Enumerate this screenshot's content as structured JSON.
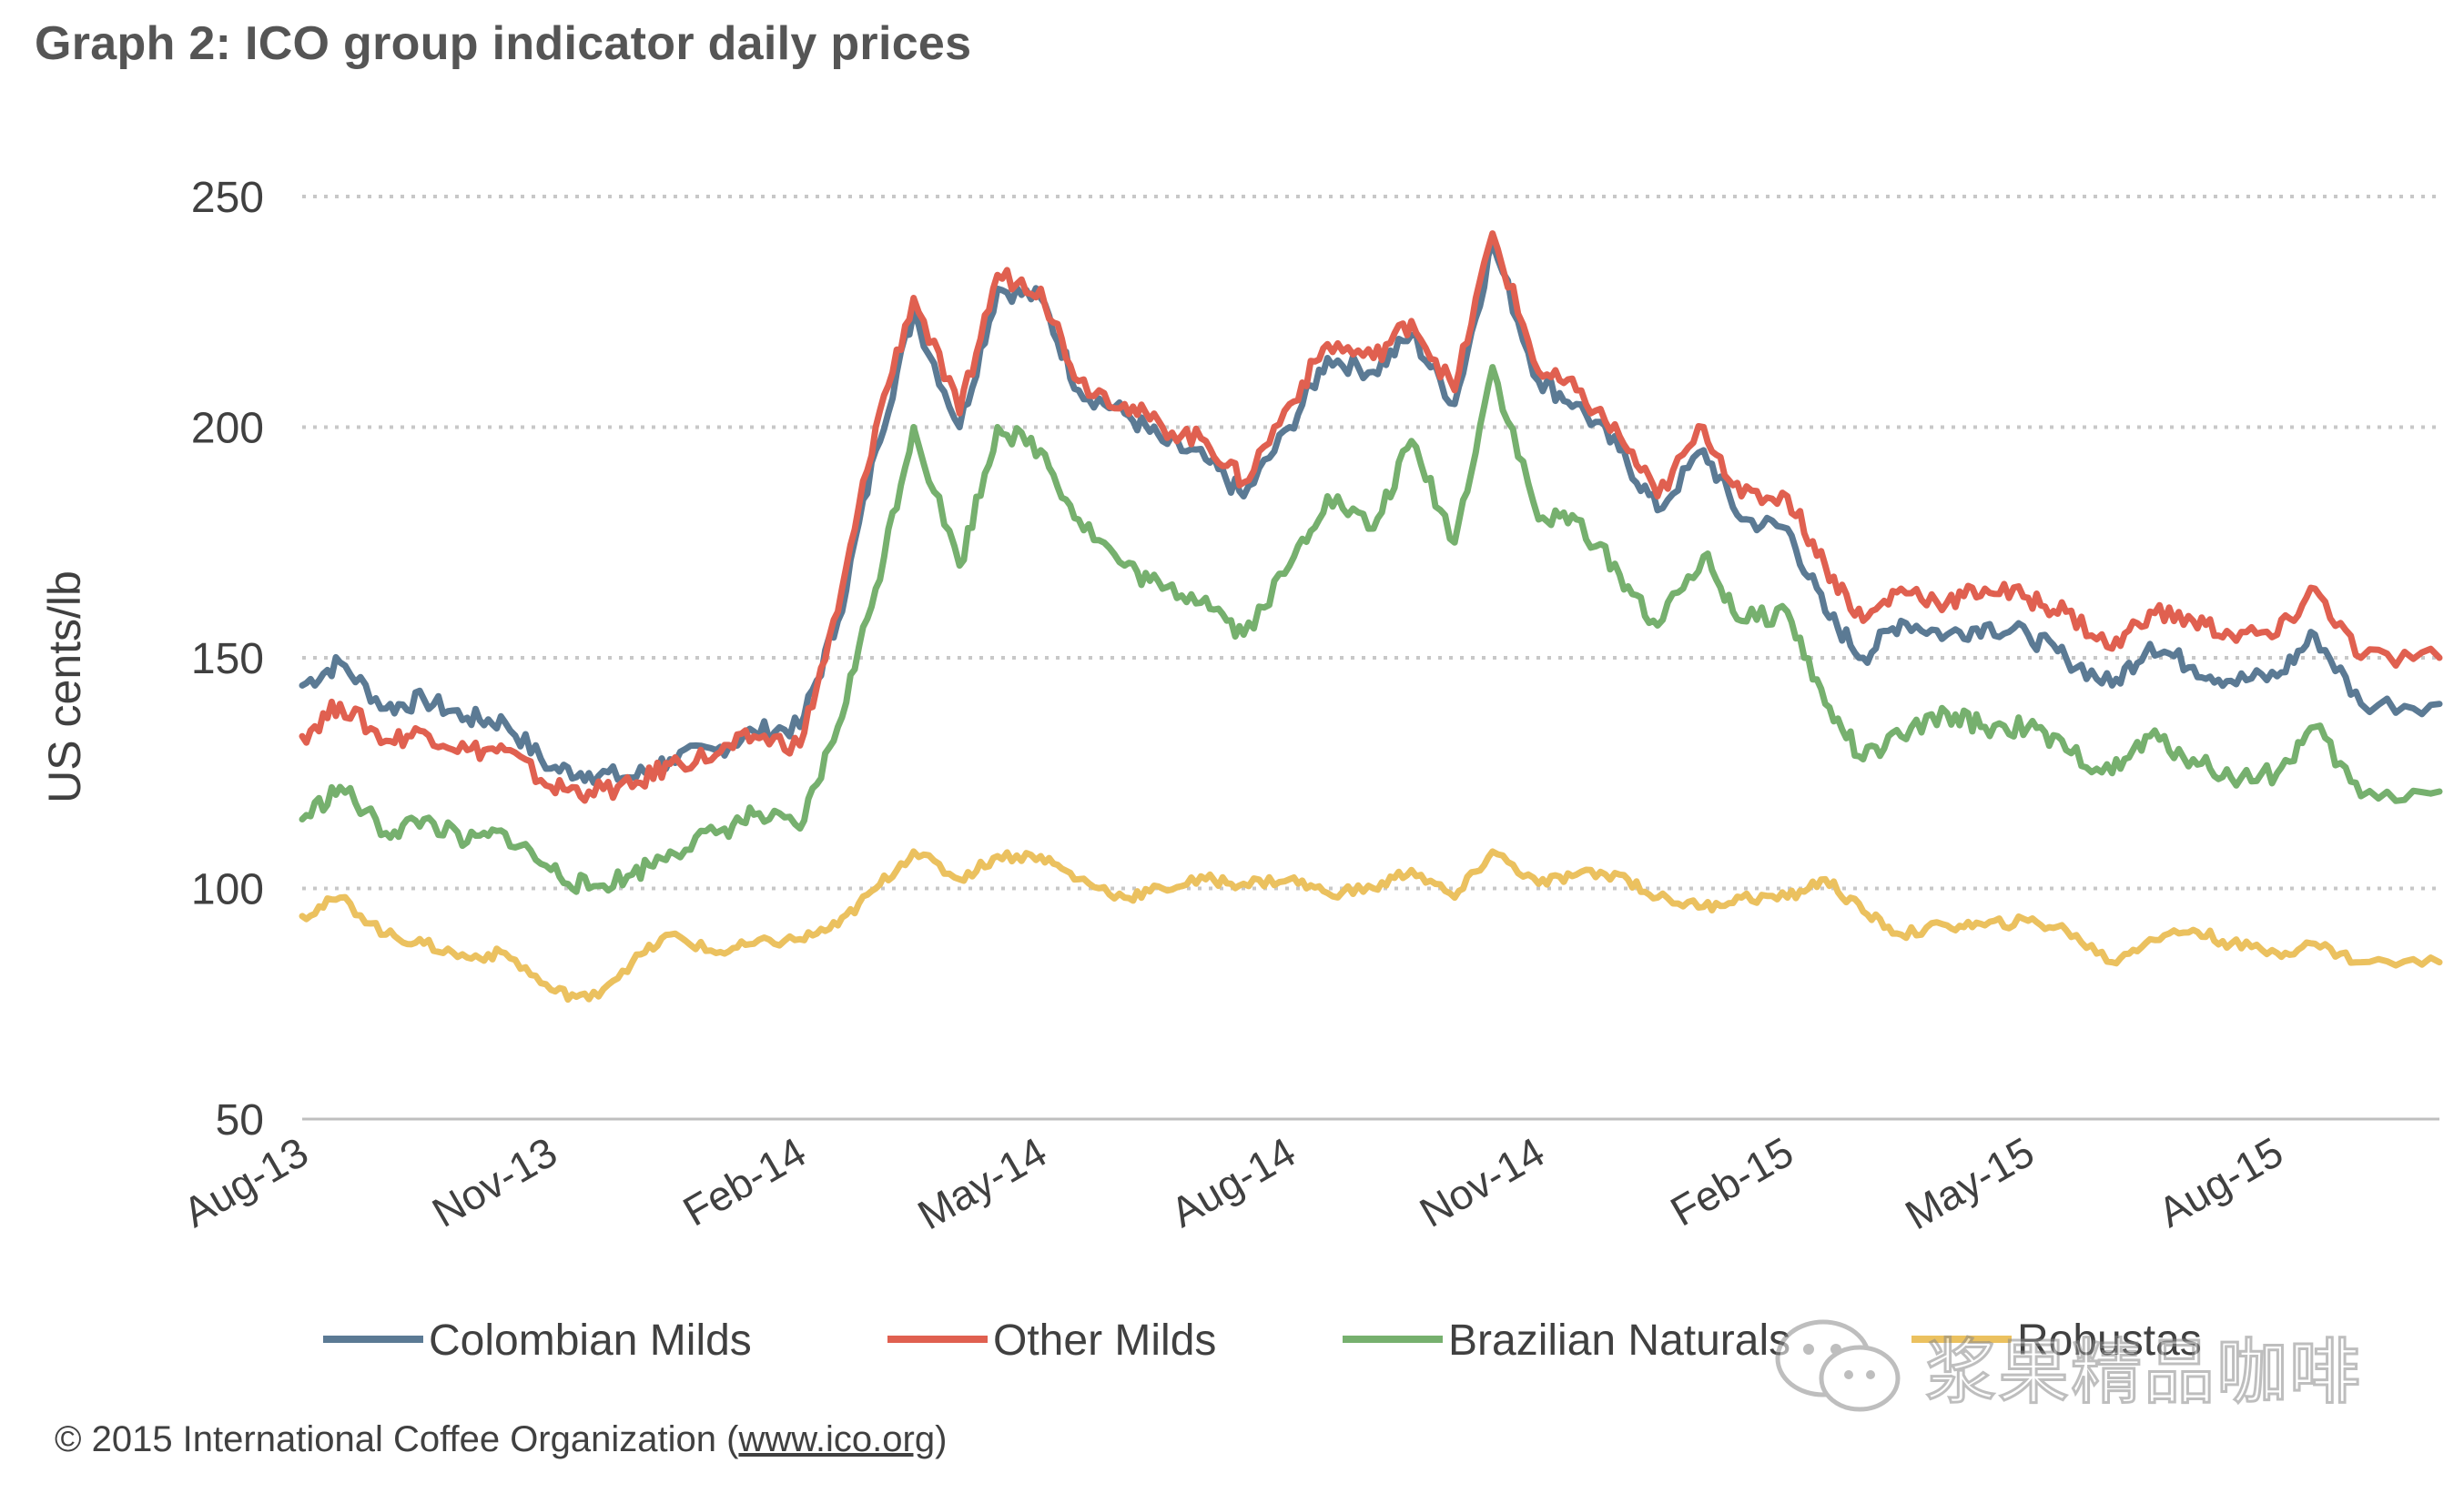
{
  "title": "Graph 2: ICO group indicator daily prices",
  "copyright": {
    "prefix": "© 2015  International  Coffee  Organization  (",
    "url": "www.ico.org",
    "suffix": ")"
  },
  "watermark": {
    "text": "浆果精品咖啡",
    "icon": "wechat-icon"
  },
  "chart_data": {
    "type": "line",
    "title": "Graph 2: ICO group indicator daily prices",
    "ylabel": "US cents/lb",
    "xlabel": "",
    "ylim": [
      50,
      250
    ],
    "yticks": [
      "50",
      "100",
      "150",
      "200",
      "250"
    ],
    "xticks": [
      "Aug-13",
      "Nov-13",
      "Feb-14",
      "May-14",
      "Aug-14",
      "Nov-14",
      "Feb-15",
      "May-15",
      "Aug-15"
    ],
    "xrange": [
      "2013-08-01",
      "2015-09-30"
    ],
    "grid": "horizontal-dotted",
    "legend": "bottom",
    "series": [
      {
        "name": "Colombian  Milds",
        "color": "#5B7A94",
        "points": [
          [
            "2013-08-01",
            144
          ],
          [
            "2013-08-15",
            149
          ],
          [
            "2013-09-01",
            139
          ],
          [
            "2013-09-15",
            141
          ],
          [
            "2013-10-01",
            137
          ],
          [
            "2013-10-15",
            136
          ],
          [
            "2013-11-01",
            126
          ],
          [
            "2013-11-15",
            125
          ],
          [
            "2013-12-01",
            124
          ],
          [
            "2013-12-15",
            128
          ],
          [
            "2014-01-01",
            130
          ],
          [
            "2014-01-15",
            134
          ],
          [
            "2014-02-01",
            135
          ],
          [
            "2014-02-15",
            158
          ],
          [
            "2014-03-01",
            195
          ],
          [
            "2014-03-15",
            225
          ],
          [
            "2014-04-01",
            200
          ],
          [
            "2014-04-15",
            230
          ],
          [
            "2014-05-01",
            228
          ],
          [
            "2014-05-15",
            208
          ],
          [
            "2014-06-01",
            203
          ],
          [
            "2014-06-15",
            197
          ],
          [
            "2014-07-01",
            193
          ],
          [
            "2014-07-15",
            185
          ],
          [
            "2014-08-01",
            200
          ],
          [
            "2014-08-15",
            215
          ],
          [
            "2014-09-01",
            212
          ],
          [
            "2014-09-15",
            220
          ],
          [
            "2014-10-01",
            205
          ],
          [
            "2014-10-15",
            240
          ],
          [
            "2014-11-01",
            210
          ],
          [
            "2014-11-15",
            205
          ],
          [
            "2014-12-01",
            195
          ],
          [
            "2014-12-15",
            182
          ],
          [
            "2015-01-01",
            195
          ],
          [
            "2015-01-15",
            180
          ],
          [
            "2015-02-01",
            178
          ],
          [
            "2015-02-15",
            160
          ],
          [
            "2015-03-01",
            150
          ],
          [
            "2015-03-15",
            158
          ],
          [
            "2015-04-01",
            155
          ],
          [
            "2015-04-15",
            157
          ],
          [
            "2015-05-01",
            155
          ],
          [
            "2015-05-15",
            150
          ],
          [
            "2015-06-01",
            144
          ],
          [
            "2015-06-15",
            153
          ],
          [
            "2015-07-01",
            148
          ],
          [
            "2015-07-15",
            145
          ],
          [
            "2015-08-01",
            146
          ],
          [
            "2015-08-15",
            155
          ],
          [
            "2015-09-01",
            140
          ],
          [
            "2015-09-30",
            140
          ]
        ]
      },
      {
        "name": "Other Milds",
        "color": "#E06050",
        "points": [
          [
            "2013-08-01",
            133
          ],
          [
            "2013-08-15",
            140
          ],
          [
            "2013-09-01",
            132
          ],
          [
            "2013-09-15",
            134
          ],
          [
            "2013-10-01",
            130
          ],
          [
            "2013-10-15",
            130
          ],
          [
            "2013-11-01",
            122
          ],
          [
            "2013-11-15",
            121
          ],
          [
            "2013-12-01",
            122
          ],
          [
            "2013-12-15",
            127
          ],
          [
            "2014-01-01",
            129
          ],
          [
            "2014-01-15",
            133
          ],
          [
            "2014-02-01",
            131
          ],
          [
            "2014-02-15",
            160
          ],
          [
            "2014-03-01",
            200
          ],
          [
            "2014-03-15",
            228
          ],
          [
            "2014-04-01",
            203
          ],
          [
            "2014-04-15",
            233
          ],
          [
            "2014-05-01",
            230
          ],
          [
            "2014-05-15",
            210
          ],
          [
            "2014-06-01",
            205
          ],
          [
            "2014-06-15",
            200
          ],
          [
            "2014-07-01",
            197
          ],
          [
            "2014-07-15",
            188
          ],
          [
            "2014-08-01",
            205
          ],
          [
            "2014-08-15",
            218
          ],
          [
            "2014-09-01",
            215
          ],
          [
            "2014-09-15",
            223
          ],
          [
            "2014-10-01",
            208
          ],
          [
            "2014-10-15",
            242
          ],
          [
            "2014-11-01",
            212
          ],
          [
            "2014-11-15",
            208
          ],
          [
            "2014-12-01",
            198
          ],
          [
            "2014-12-15",
            185
          ],
          [
            "2015-01-01",
            200
          ],
          [
            "2015-01-15",
            185
          ],
          [
            "2015-02-01",
            185
          ],
          [
            "2015-02-15",
            170
          ],
          [
            "2015-03-01",
            158
          ],
          [
            "2015-03-15",
            165
          ],
          [
            "2015-04-01",
            162
          ],
          [
            "2015-04-15",
            165
          ],
          [
            "2015-05-01",
            163
          ],
          [
            "2015-05-15",
            160
          ],
          [
            "2015-06-01",
            152
          ],
          [
            "2015-06-15",
            160
          ],
          [
            "2015-07-01",
            158
          ],
          [
            "2015-07-15",
            155
          ],
          [
            "2015-08-01",
            155
          ],
          [
            "2015-08-15",
            165
          ],
          [
            "2015-09-01",
            150
          ],
          [
            "2015-09-30",
            150
          ]
        ]
      },
      {
        "name": "Brazilian Naturals",
        "color": "#76B06E",
        "points": [
          [
            "2013-08-01",
            115
          ],
          [
            "2013-08-15",
            122
          ],
          [
            "2013-09-01",
            112
          ],
          [
            "2013-09-15",
            115
          ],
          [
            "2013-10-01",
            110
          ],
          [
            "2013-10-15",
            112
          ],
          [
            "2013-11-01",
            104
          ],
          [
            "2013-11-15",
            100
          ],
          [
            "2013-12-01",
            103
          ],
          [
            "2013-12-15",
            108
          ],
          [
            "2014-01-01",
            112
          ],
          [
            "2014-01-15",
            116
          ],
          [
            "2014-02-01",
            113
          ],
          [
            "2014-02-15",
            135
          ],
          [
            "2014-03-01",
            165
          ],
          [
            "2014-03-15",
            200
          ],
          [
            "2014-04-01",
            170
          ],
          [
            "2014-04-15",
            200
          ],
          [
            "2014-05-01",
            195
          ],
          [
            "2014-05-15",
            180
          ],
          [
            "2014-06-01",
            170
          ],
          [
            "2014-06-15",
            165
          ],
          [
            "2014-07-01",
            163
          ],
          [
            "2014-07-15",
            155
          ],
          [
            "2014-08-01",
            170
          ],
          [
            "2014-08-15",
            185
          ],
          [
            "2014-09-01",
            178
          ],
          [
            "2014-09-15",
            197
          ],
          [
            "2014-10-01",
            175
          ],
          [
            "2014-10-15",
            213
          ],
          [
            "2014-11-01",
            180
          ],
          [
            "2014-11-15",
            180
          ],
          [
            "2014-12-01",
            168
          ],
          [
            "2014-12-15",
            157
          ],
          [
            "2015-01-01",
            172
          ],
          [
            "2015-01-15",
            158
          ],
          [
            "2015-02-01",
            160
          ],
          [
            "2015-02-15",
            140
          ],
          [
            "2015-03-01",
            128
          ],
          [
            "2015-03-15",
            133
          ],
          [
            "2015-04-01",
            138
          ],
          [
            "2015-04-15",
            135
          ],
          [
            "2015-05-01",
            135
          ],
          [
            "2015-05-15",
            130
          ],
          [
            "2015-06-01",
            125
          ],
          [
            "2015-06-15",
            133
          ],
          [
            "2015-07-01",
            128
          ],
          [
            "2015-07-15",
            124
          ],
          [
            "2015-08-01",
            125
          ],
          [
            "2015-08-15",
            135
          ],
          [
            "2015-09-01",
            120
          ],
          [
            "2015-09-30",
            121
          ]
        ]
      },
      {
        "name": "Robustas",
        "color": "#EBC15F",
        "points": [
          [
            "2013-08-01",
            94
          ],
          [
            "2013-08-15",
            98
          ],
          [
            "2013-09-01",
            90
          ],
          [
            "2013-09-15",
            88
          ],
          [
            "2013-10-01",
            85
          ],
          [
            "2013-10-15",
            86
          ],
          [
            "2013-11-01",
            78
          ],
          [
            "2013-11-15",
            76
          ],
          [
            "2013-12-01",
            84
          ],
          [
            "2013-12-15",
            90
          ],
          [
            "2014-01-01",
            86
          ],
          [
            "2014-01-15",
            88
          ],
          [
            "2014-02-01",
            89
          ],
          [
            "2014-02-15",
            92
          ],
          [
            "2014-03-01",
            100
          ],
          [
            "2014-03-15",
            108
          ],
          [
            "2014-04-01",
            102
          ],
          [
            "2014-04-15",
            107
          ],
          [
            "2014-05-01",
            107
          ],
          [
            "2014-05-15",
            102
          ],
          [
            "2014-06-01",
            98
          ],
          [
            "2014-06-15",
            100
          ],
          [
            "2014-07-01",
            102
          ],
          [
            "2014-07-15",
            101
          ],
          [
            "2014-08-01",
            102
          ],
          [
            "2014-08-15",
            99
          ],
          [
            "2014-09-01",
            100
          ],
          [
            "2014-09-15",
            104
          ],
          [
            "2014-10-01",
            98
          ],
          [
            "2014-10-15",
            108
          ],
          [
            "2014-11-01",
            101
          ],
          [
            "2014-11-15",
            103
          ],
          [
            "2014-12-01",
            103
          ],
          [
            "2014-12-15",
            98
          ],
          [
            "2015-01-01",
            96
          ],
          [
            "2015-01-15",
            98
          ],
          [
            "2015-02-01",
            98
          ],
          [
            "2015-02-15",
            102
          ],
          [
            "2015-03-01",
            95
          ],
          [
            "2015-03-15",
            90
          ],
          [
            "2015-04-01",
            92
          ],
          [
            "2015-04-15",
            92
          ],
          [
            "2015-05-01",
            93
          ],
          [
            "2015-05-15",
            91
          ],
          [
            "2015-06-01",
            84
          ],
          [
            "2015-06-15",
            89
          ],
          [
            "2015-07-01",
            91
          ],
          [
            "2015-07-15",
            88
          ],
          [
            "2015-08-01",
            86
          ],
          [
            "2015-08-15",
            88
          ],
          [
            "2015-09-01",
            84
          ],
          [
            "2015-09-30",
            84
          ]
        ]
      }
    ]
  }
}
